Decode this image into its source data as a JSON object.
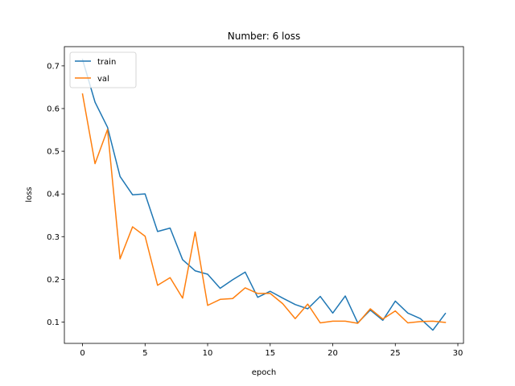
{
  "chart_data": {
    "type": "line",
    "title": "Number: 6 loss",
    "xlabel": "epoch",
    "ylabel": "loss",
    "xlim": [
      -1.45,
      30.45
    ],
    "ylim": [
      0.05,
      0.745
    ],
    "xticks": [
      0,
      5,
      10,
      15,
      20,
      25,
      30
    ],
    "yticks": [
      0.1,
      0.2,
      0.3,
      0.4,
      0.5,
      0.6,
      0.7
    ],
    "grid": false,
    "legend_position": "upper left",
    "x": [
      0,
      1,
      2,
      3,
      4,
      5,
      6,
      7,
      8,
      9,
      10,
      11,
      12,
      13,
      14,
      15,
      16,
      17,
      18,
      19,
      20,
      21,
      22,
      23,
      24,
      25,
      26,
      27,
      28,
      29
    ],
    "series": [
      {
        "name": "train",
        "color": "#1f77b4",
        "values": [
          0.715,
          0.615,
          0.556,
          0.441,
          0.398,
          0.4,
          0.312,
          0.32,
          0.246,
          0.22,
          0.212,
          0.179,
          0.199,
          0.217,
          0.158,
          0.172,
          0.156,
          0.141,
          0.131,
          0.16,
          0.121,
          0.161,
          0.098,
          0.128,
          0.104,
          0.149,
          0.121,
          0.108,
          0.081,
          0.12
        ]
      },
      {
        "name": "val",
        "color": "#ff7f0e",
        "values": [
          0.634,
          0.471,
          0.551,
          0.248,
          0.323,
          0.301,
          0.186,
          0.204,
          0.156,
          0.311,
          0.139,
          0.153,
          0.155,
          0.18,
          0.167,
          0.167,
          0.143,
          0.108,
          0.142,
          0.098,
          0.102,
          0.102,
          0.097,
          0.131,
          0.107,
          0.126,
          0.098,
          0.101,
          0.102,
          0.099
        ]
      }
    ]
  }
}
